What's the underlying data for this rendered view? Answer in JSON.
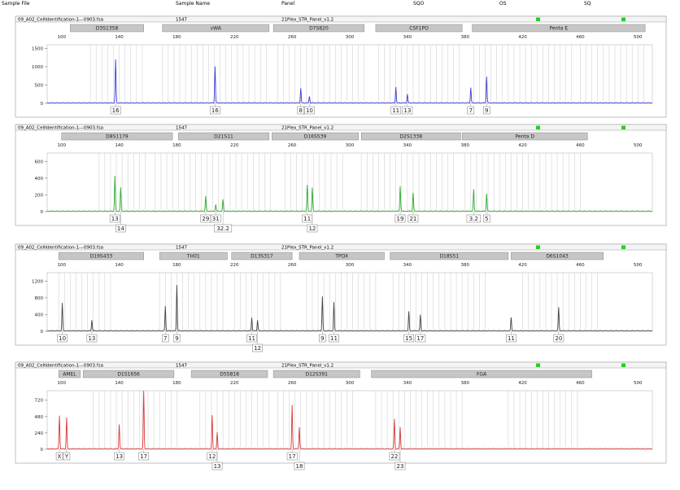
{
  "header": {
    "sample_file": "Sample File",
    "sample_name": "Sample Name",
    "panel": "Panel",
    "sqo": "SQO",
    "os": "OS",
    "sq": "SQ"
  },
  "chart_data": [
    {
      "type": "line",
      "color": "#3a3fd6",
      "sample_file": "09_A02_CellIdentification-1---0903.fsa",
      "sample_name": "1547",
      "panel": "21Plex_STR_Panel_v1.2",
      "x_ticks": [
        100,
        140,
        180,
        220,
        260,
        300,
        340,
        380,
        420,
        460,
        500
      ],
      "y_ticks": [
        0,
        500,
        1000,
        1500
      ],
      "xlim": [
        90,
        510
      ],
      "ylim": [
        0,
        1600
      ],
      "markers": [
        {
          "name": "D3S1358",
          "start": 106,
          "end": 157
        },
        {
          "name": "vWA",
          "start": 170,
          "end": 244
        },
        {
          "name": "D7S820",
          "start": 247,
          "end": 310
        },
        {
          "name": "CSF1PO",
          "start": 318,
          "end": 378
        },
        {
          "name": "Penta E",
          "start": 385,
          "end": 505
        }
      ],
      "bins": [
        [
          120,
          156
        ],
        [
          170,
          245
        ],
        [
          250,
          310
        ],
        [
          320,
          378
        ],
        [
          386,
          455
        ],
        [
          460,
          505
        ]
      ],
      "peaks": [
        {
          "x": 137.5,
          "height": 1180,
          "label": "16",
          "row": 1
        },
        {
          "x": 206.5,
          "height": 1000,
          "label": "16",
          "row": 1
        },
        {
          "x": 266,
          "height": 400,
          "label": "8",
          "row": 1
        },
        {
          "x": 272,
          "height": 180,
          "label": "10",
          "row": 1
        },
        {
          "x": 332,
          "height": 440,
          "label": "11",
          "row": 1
        },
        {
          "x": 340,
          "height": 240,
          "label": "13",
          "row": 1
        },
        {
          "x": 384,
          "height": 420,
          "label": "7",
          "row": 1
        },
        {
          "x": 395,
          "height": 720,
          "label": "9",
          "row": 1
        }
      ]
    },
    {
      "type": "line",
      "color": "#2eaa32",
      "sample_file": "09_A02_CellIdentification-1---0903.fsa",
      "sample_name": "1547",
      "panel": "21Plex_STR_Panel_v1.2",
      "x_ticks": [
        100,
        140,
        180,
        220,
        260,
        300,
        340,
        380,
        420,
        460,
        500
      ],
      "y_ticks": [
        0,
        200,
        400,
        600
      ],
      "xlim": [
        90,
        510
      ],
      "ylim": [
        0,
        700
      ],
      "markers": [
        {
          "name": "D8S1179",
          "start": 100,
          "end": 177
        },
        {
          "name": "D21S11",
          "start": 181,
          "end": 244
        },
        {
          "name": "D16S539",
          "start": 246,
          "end": 306
        },
        {
          "name": "D2S1338",
          "start": 308,
          "end": 377
        },
        {
          "name": "Penta D",
          "start": 378,
          "end": 465
        }
      ],
      "bins": [
        [
          126,
          158
        ],
        [
          165,
          248
        ],
        [
          255,
          298
        ],
        [
          308,
          375
        ],
        [
          380,
          460
        ]
      ],
      "peaks": [
        {
          "x": 137,
          "height": 420,
          "label": "13",
          "row": 1
        },
        {
          "x": 141,
          "height": 280,
          "label": "14",
          "row": 2
        },
        {
          "x": 200,
          "height": 180,
          "label": "29",
          "row": 1
        },
        {
          "x": 207,
          "height": 80,
          "label": "31",
          "row": 1
        },
        {
          "x": 212,
          "height": 140,
          "label": "32.2",
          "row": 2
        },
        {
          "x": 270.5,
          "height": 310,
          "label": "11",
          "row": 1
        },
        {
          "x": 274,
          "height": 280,
          "label": "12",
          "row": 2
        },
        {
          "x": 335,
          "height": 300,
          "label": "19",
          "row": 1
        },
        {
          "x": 344,
          "height": 220,
          "label": "21",
          "row": 1
        },
        {
          "x": 386,
          "height": 260,
          "label": "3.2",
          "row": 1
        },
        {
          "x": 395,
          "height": 210,
          "label": "5",
          "row": 1
        }
      ]
    },
    {
      "type": "line",
      "color": "#444444",
      "sample_file": "09_A02_CellIdentification-1---0903.fsa",
      "sample_name": "1547",
      "panel": "21Plex_STR_Panel_v1.2",
      "x_ticks": [
        100,
        140,
        180,
        220,
        260,
        300,
        340,
        380,
        420,
        460,
        500
      ],
      "y_ticks": [
        0,
        400,
        800,
        1200
      ],
      "xlim": [
        90,
        510
      ],
      "ylim": [
        0,
        1400
      ],
      "markers": [
        {
          "name": "D19S433",
          "start": 98,
          "end": 157
        },
        {
          "name": "TH01",
          "start": 168,
          "end": 215
        },
        {
          "name": "D13S317",
          "start": 218,
          "end": 260
        },
        {
          "name": "TPOX",
          "start": 265,
          "end": 324
        },
        {
          "name": "D18S51",
          "start": 328,
          "end": 410
        },
        {
          "name": "D6S1043",
          "start": 412,
          "end": 476
        }
      ],
      "bins": [
        [
          98,
          135
        ],
        [
          168,
          215
        ],
        [
          220,
          255
        ],
        [
          270,
          320
        ],
        [
          330,
          395
        ],
        [
          420,
          475
        ]
      ],
      "peaks": [
        {
          "x": 100.5,
          "height": 660,
          "label": "10",
          "row": 1
        },
        {
          "x": 121,
          "height": 260,
          "label": "13",
          "row": 1
        },
        {
          "x": 172,
          "height": 590,
          "label": "7",
          "row": 1
        },
        {
          "x": 180,
          "height": 1100,
          "label": "9",
          "row": 1
        },
        {
          "x": 232,
          "height": 320,
          "label": "11",
          "row": 1
        },
        {
          "x": 236,
          "height": 260,
          "label": "12",
          "row": 2
        },
        {
          "x": 281,
          "height": 820,
          "label": "9",
          "row": 1
        },
        {
          "x": 289,
          "height": 680,
          "label": "11",
          "row": 1
        },
        {
          "x": 341,
          "height": 460,
          "label": "15",
          "row": 1
        },
        {
          "x": 349,
          "height": 380,
          "label": "17",
          "row": 1
        },
        {
          "x": 412,
          "height": 320,
          "label": "11",
          "row": 1
        },
        {
          "x": 445,
          "height": 560,
          "label": "20",
          "row": 1
        }
      ]
    },
    {
      "type": "line",
      "color": "#d93a3a",
      "sample_file": "09_A02_CellIdentification-1---0903.fsa",
      "sample_name": "1547",
      "panel": "21Plex_STR_Panel_v1.2",
      "x_ticks": [
        100,
        140,
        180,
        220,
        260,
        300,
        340,
        380,
        420,
        460,
        500
      ],
      "y_ticks": [
        0,
        240,
        480,
        720
      ],
      "xlim": [
        90,
        510
      ],
      "ylim": [
        0,
        860
      ],
      "markers": [
        {
          "name": "AMEL",
          "start": 98,
          "end": 113
        },
        {
          "name": "D1S1656",
          "start": 115,
          "end": 178
        },
        {
          "name": "D5S818",
          "start": 190,
          "end": 243
        },
        {
          "name": "D12S391",
          "start": 247,
          "end": 307
        },
        {
          "name": "FGA",
          "start": 315,
          "end": 468
        }
      ],
      "bins": [
        [
          122,
          154
        ],
        [
          156,
          180
        ],
        [
          196,
          244
        ],
        [
          250,
          305
        ],
        [
          318,
          378
        ],
        [
          410,
          460
        ]
      ],
      "peaks": [
        {
          "x": 98.5,
          "height": 490,
          "label": "X",
          "row": 1
        },
        {
          "x": 103.5,
          "height": 460,
          "label": "Y",
          "row": 1
        },
        {
          "x": 140,
          "height": 360,
          "label": "13",
          "row": 1
        },
        {
          "x": 157,
          "height": 850,
          "label": "17",
          "row": 1
        },
        {
          "x": 204.5,
          "height": 490,
          "label": "12",
          "row": 1
        },
        {
          "x": 208,
          "height": 240,
          "label": "13",
          "row": 2
        },
        {
          "x": 260,
          "height": 640,
          "label": "17",
          "row": 1
        },
        {
          "x": 265,
          "height": 320,
          "label": "18",
          "row": 2
        },
        {
          "x": 331,
          "height": 440,
          "label": "22",
          "row": 1
        },
        {
          "x": 335,
          "height": 320,
          "label": "23",
          "row": 2
        }
      ]
    }
  ]
}
